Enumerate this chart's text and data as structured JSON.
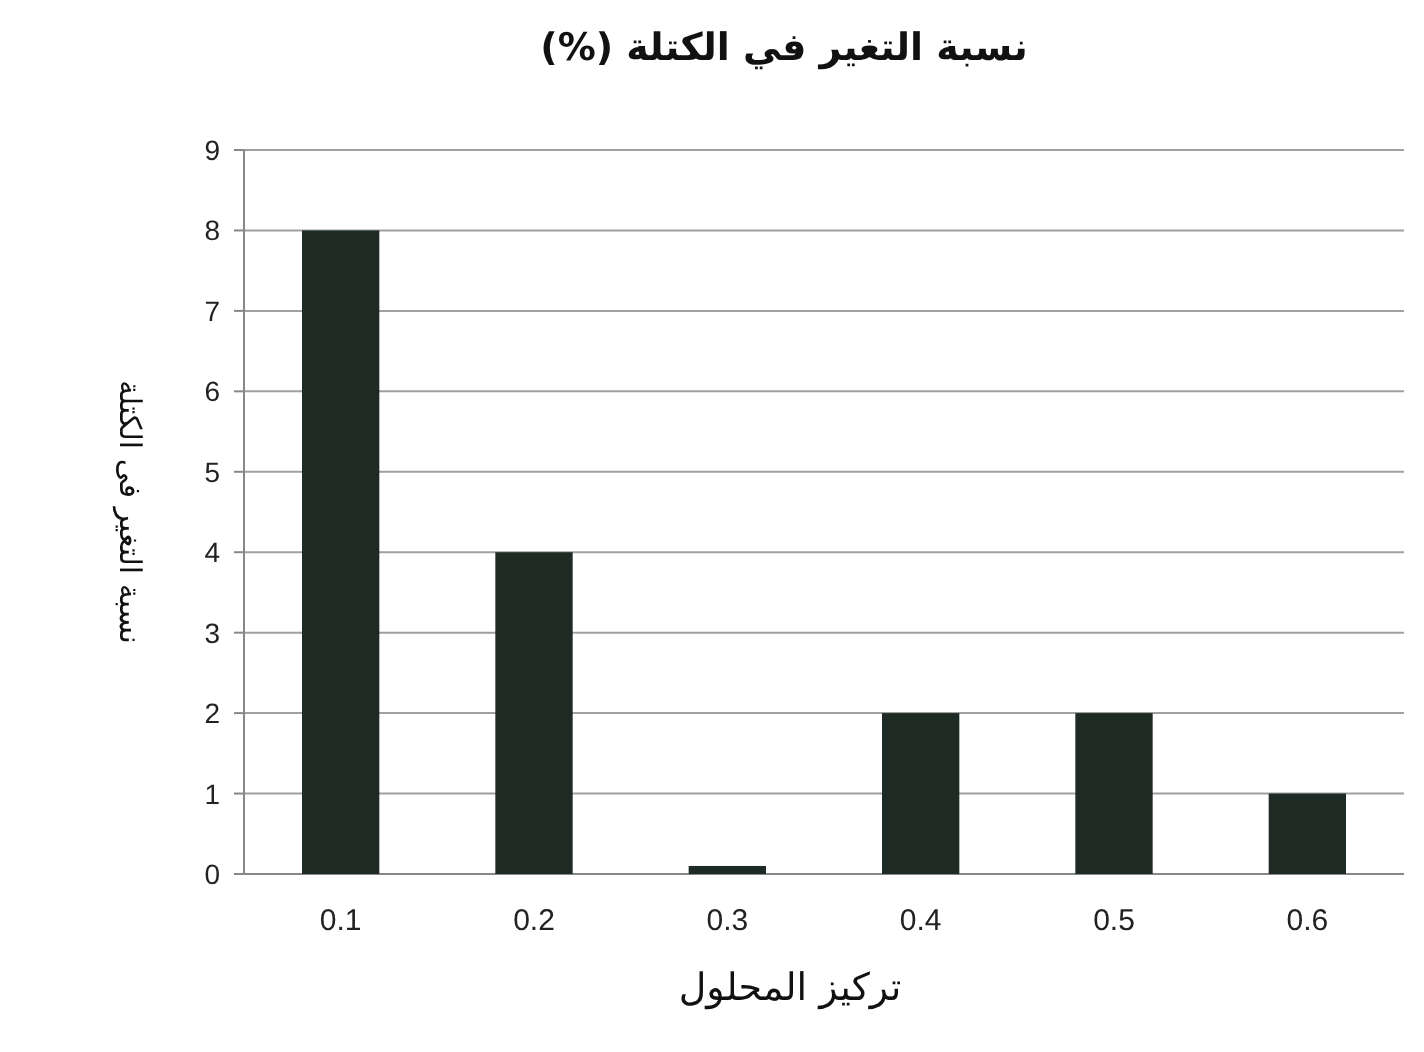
{
  "chart_data": {
    "type": "bar",
    "title": "نسبة التغير في الكتلة (%)",
    "xlabel": "تركيز المحلول",
    "ylabel": "نسبة التغير فى الكتلة",
    "categories": [
      "0.1",
      "0.2",
      "0.3",
      "0.4",
      "0.5",
      "0.6"
    ],
    "values": [
      8,
      4,
      0.1,
      2,
      2,
      1
    ],
    "color": "#1e2b24",
    "ylim": [
      0,
      9
    ],
    "yticks": [
      0,
      1,
      2,
      3,
      4,
      5,
      6,
      7,
      8,
      9
    ],
    "grid": "y"
  }
}
